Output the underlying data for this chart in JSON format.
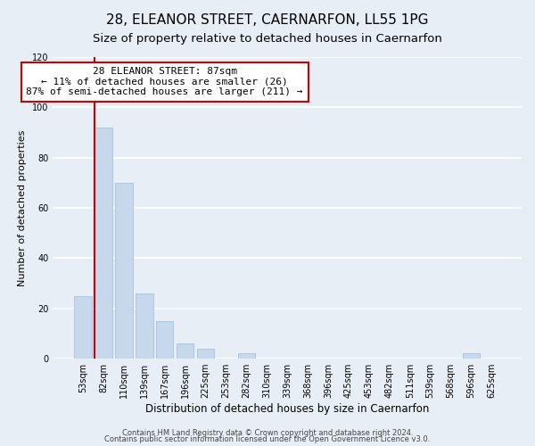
{
  "title": "28, ELEANOR STREET, CAERNARFON, LL55 1PG",
  "subtitle": "Size of property relative to detached houses in Caernarfon",
  "xlabel": "Distribution of detached houses by size in Caernarfon",
  "ylabel": "Number of detached properties",
  "bar_color": "#c8d8ec",
  "bar_edge_color": "#a8c0de",
  "categories": [
    "53sqm",
    "82sqm",
    "110sqm",
    "139sqm",
    "167sqm",
    "196sqm",
    "225sqm",
    "253sqm",
    "282sqm",
    "310sqm",
    "339sqm",
    "368sqm",
    "396sqm",
    "425sqm",
    "453sqm",
    "482sqm",
    "511sqm",
    "539sqm",
    "568sqm",
    "596sqm",
    "625sqm"
  ],
  "values": [
    25,
    92,
    70,
    26,
    15,
    6,
    4,
    0,
    2,
    0,
    0,
    0,
    0,
    0,
    0,
    0,
    0,
    0,
    0,
    2,
    0
  ],
  "ylim": [
    0,
    120
  ],
  "yticks": [
    0,
    20,
    40,
    60,
    80,
    100,
    120
  ],
  "red_line_index": 1,
  "annotation_line1": "28 ELEANOR STREET: 87sqm",
  "annotation_line2": "← 11% of detached houses are smaller (26)",
  "annotation_line3": "87% of semi-detached houses are larger (211) →",
  "annotation_box_color": "#ffffff",
  "annotation_box_edge_color": "#cc0000",
  "footnote1": "Contains HM Land Registry data © Crown copyright and database right 2024.",
  "footnote2": "Contains public sector information licensed under the Open Government Licence v3.0.",
  "background_color": "#e8eef6",
  "grid_color": "#ffffff",
  "title_fontsize": 11,
  "subtitle_fontsize": 9.5,
  "tick_fontsize": 7,
  "ylabel_fontsize": 8,
  "xlabel_fontsize": 8.5,
  "annotation_fontsize": 8,
  "footnote_fontsize": 6
}
